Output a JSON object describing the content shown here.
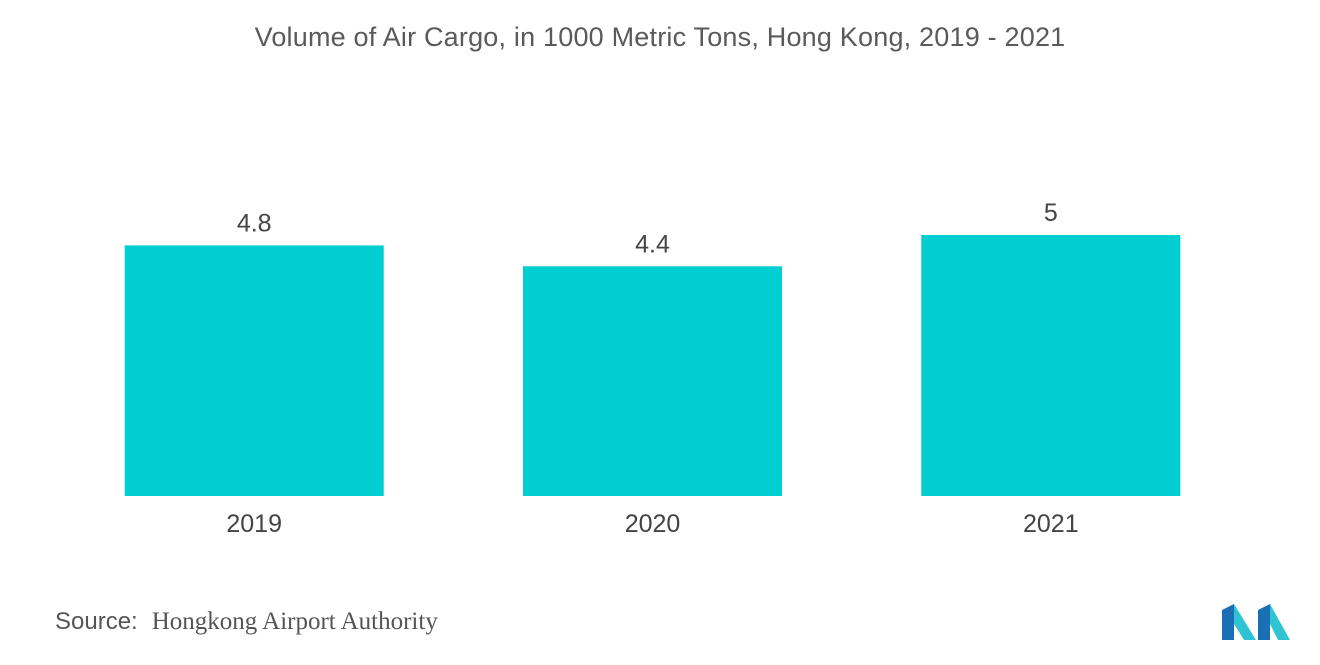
{
  "chart_data": {
    "type": "bar",
    "title": "Volume of Air Cargo, in 1000 Metric Tons, Hong Kong, 2019 - 2021",
    "categories": [
      "2019",
      "2020",
      "2021"
    ],
    "values": [
      4.8,
      4.4,
      5
    ],
    "value_labels": [
      "4.8",
      "4.4",
      "5"
    ],
    "xlabel": "",
    "ylabel": "",
    "ylim": [
      0,
      5
    ],
    "grid": false,
    "legend": "none",
    "bar_color": "#00ced1"
  },
  "footer": {
    "source_label": "Source:",
    "source_text": "Hongkong Airport Authority"
  },
  "brand": {
    "logo_icon": "mordor-intelligence-logo-icon",
    "colors": [
      "#1a6fb5",
      "#2fc4d2"
    ]
  }
}
